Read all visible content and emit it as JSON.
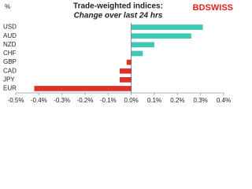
{
  "chart_data": {
    "type": "hbar",
    "title": "Trade-weighted indices:",
    "subtitle": "Change over last 24 hrs",
    "unit_label": "%",
    "logo": "BDSWISS",
    "categories": [
      "USD",
      "AUD",
      "NZD",
      "CHF",
      "GBP",
      "CAD",
      "JPY",
      "EUR"
    ],
    "values": [
      0.31,
      0.26,
      0.1,
      0.05,
      -0.02,
      -0.05,
      -0.05,
      -0.42
    ],
    "color": "#3ec9b5",
    "negative_color": "#e0302a",
    "xlim": [
      -0.5,
      0.4
    ],
    "xticks": [
      {
        "value": -0.5,
        "label": "-0.5%"
      },
      {
        "value": -0.4,
        "label": "-0.4%"
      },
      {
        "value": -0.3,
        "label": "-0.3%"
      },
      {
        "value": -0.2,
        "label": "-0.2%"
      },
      {
        "value": -0.1,
        "label": "-0.1%"
      },
      {
        "value": 0,
        "label": "0.0%"
      },
      {
        "value": 0.1,
        "label": "0.1%"
      },
      {
        "value": 0.2,
        "label": "0.2%"
      },
      {
        "value": 0.3,
        "label": "0.3%"
      },
      {
        "value": 0.4,
        "label": "0.4%"
      }
    ]
  }
}
